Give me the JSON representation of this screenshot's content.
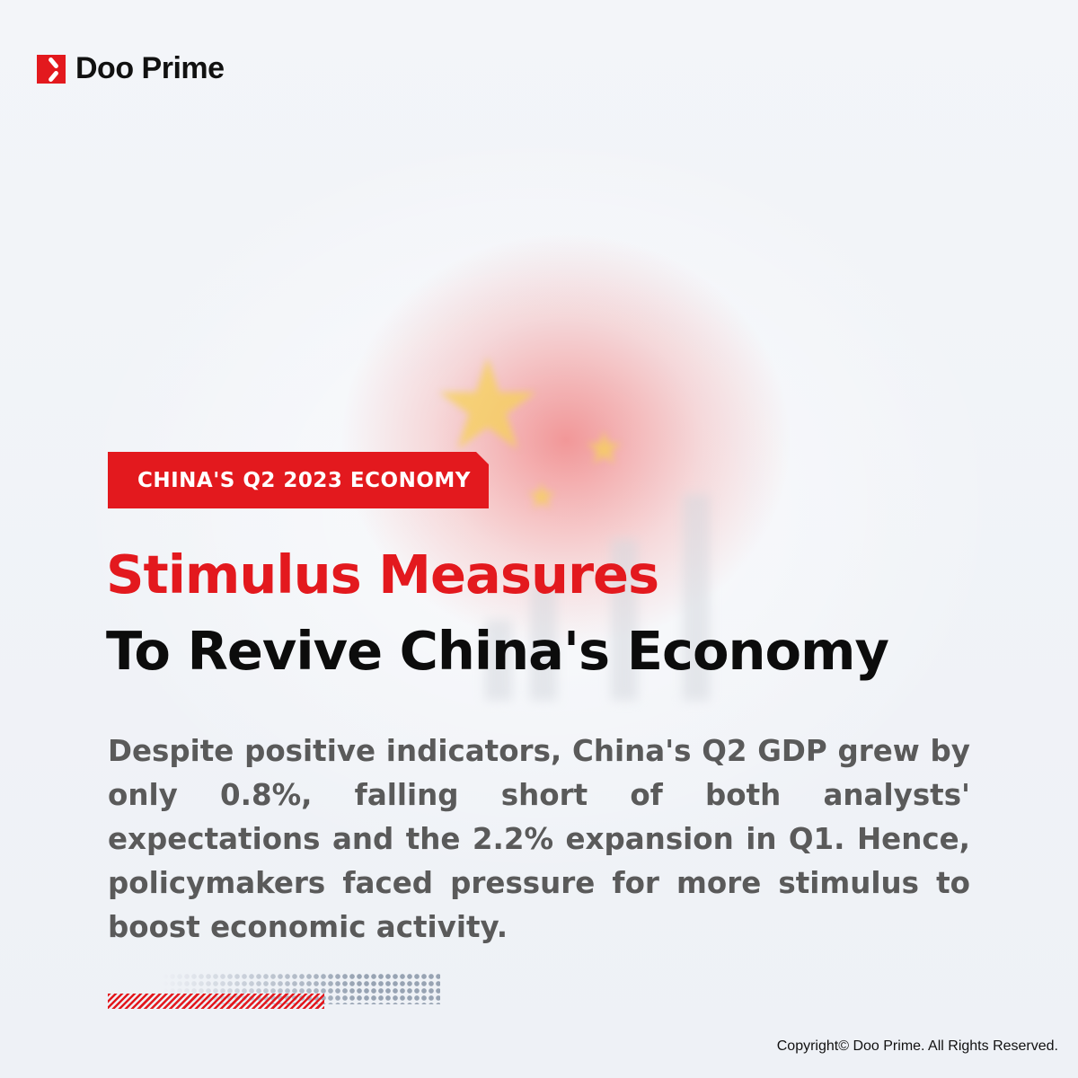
{
  "brand": {
    "name": "Doo Prime",
    "accent": "#e3191e"
  },
  "badge": {
    "label": "CHINA'S Q2 2023 ECONOMY"
  },
  "headline": {
    "line1": "Stimulus Measures",
    "line2": "To Revive China's Economy"
  },
  "body": "Despite positive indicators, China's Q2 GDP grew by only 0.8%, falling short of both analysts' expectations and the 2.2% expansion in Q1. Hence, policymakers faced pressure for more stimulus to boost economic activity.",
  "footer": {
    "copyright": "Copyright© Doo Prime. All Rights Reserved."
  }
}
